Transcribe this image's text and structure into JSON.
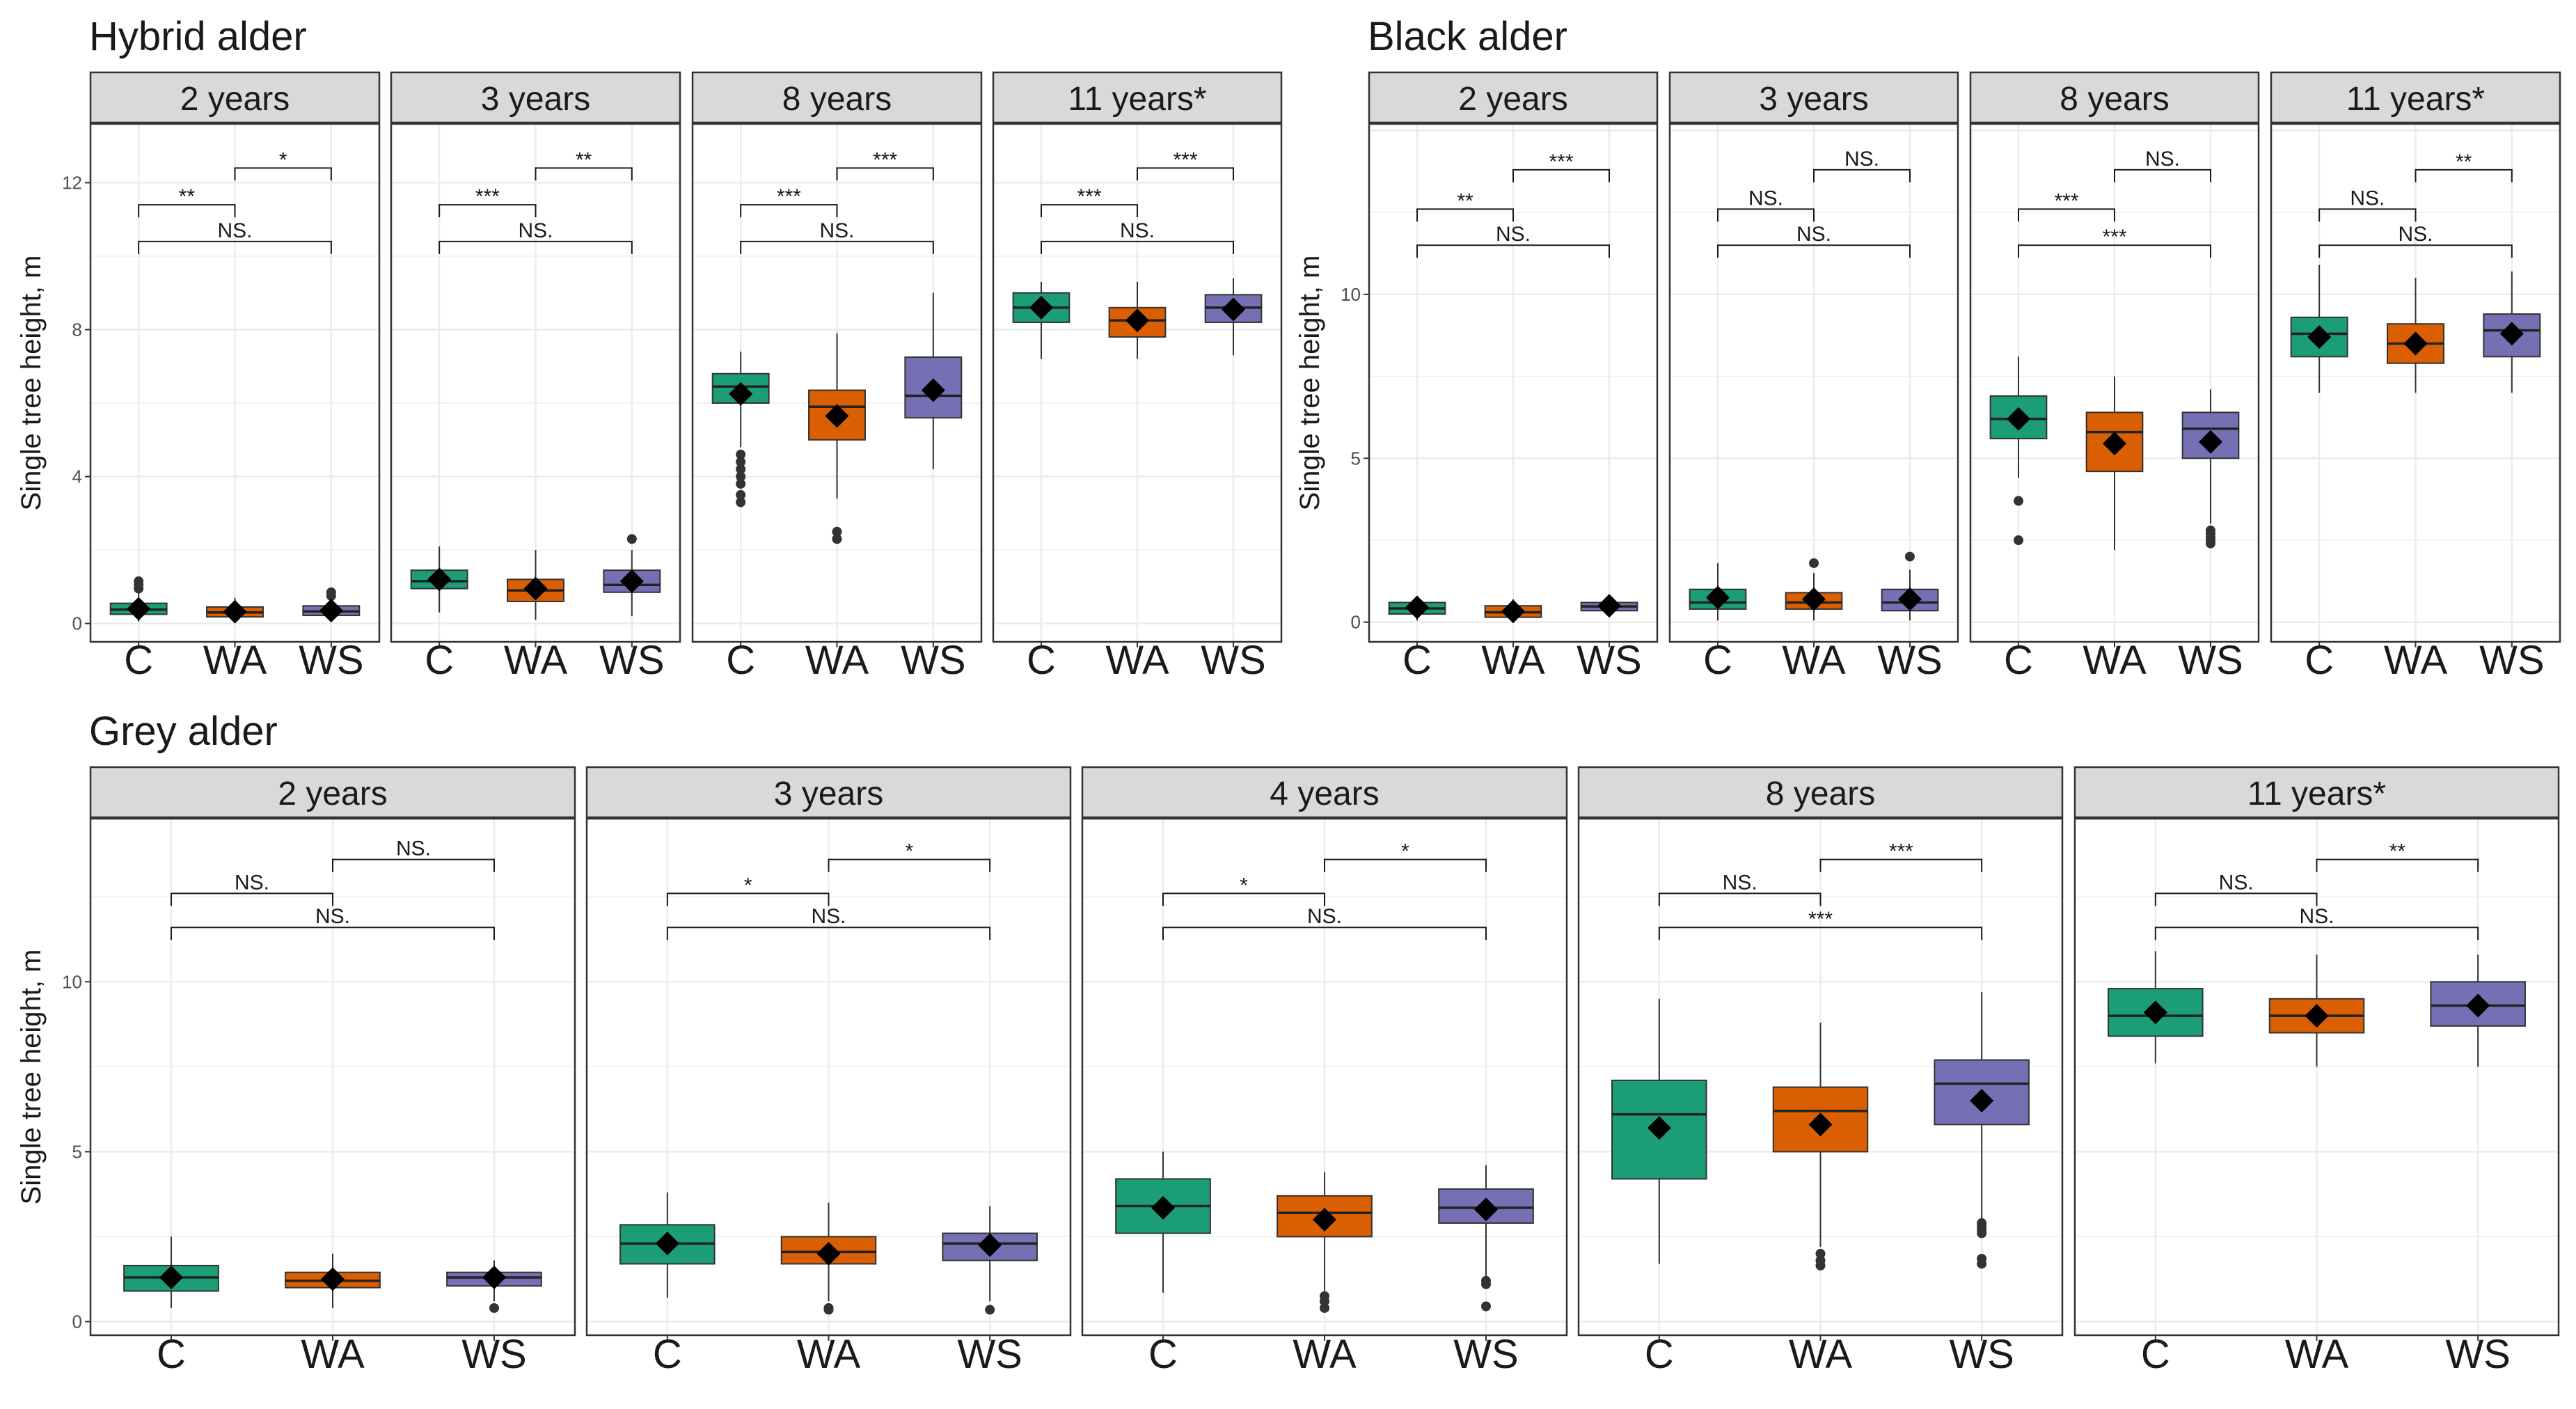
{
  "colors": {
    "C": "#1b9e77",
    "WA": "#d95f02",
    "WS": "#7570b3",
    "strip_bg": "#d9d9d9",
    "grid": "#ebebeb",
    "panel_border": "#333333",
    "text": "#1a1a1a",
    "axis_text": "#4d4d4d"
  },
  "chart_data": [
    {
      "type": "boxplot",
      "title": "Hybrid alder",
      "ylabel": "Single tree height, m",
      "ylim": [
        -0.5,
        13.6
      ],
      "yticks": [
        0,
        4,
        8,
        12
      ],
      "categories": [
        "C",
        "WA",
        "WS"
      ],
      "facets": [
        {
          "label": "2 years",
          "boxes": [
            {
              "cat": "C",
              "q1": 0.25,
              "median": 0.38,
              "q3": 0.55,
              "low": 0.05,
              "high": 0.85,
              "mean": 0.4,
              "outliers": [
                0.95,
                1.05,
                1.15
              ]
            },
            {
              "cat": "WA",
              "q1": 0.18,
              "median": 0.3,
              "q3": 0.45,
              "low": 0.05,
              "high": 0.7,
              "mean": 0.32,
              "outliers": []
            },
            {
              "cat": "WS",
              "q1": 0.22,
              "median": 0.33,
              "q3": 0.48,
              "low": 0.05,
              "high": 0.7,
              "mean": 0.35,
              "outliers": [
                0.75,
                0.85
              ]
            }
          ],
          "brackets": [
            {
              "from": 1,
              "to": 2,
              "y": 12.4,
              "label": "*"
            },
            {
              "from": 0,
              "to": 1,
              "y": 11.4,
              "label": "**"
            },
            {
              "from": 0,
              "to": 2,
              "y": 10.4,
              "label": "NS."
            }
          ]
        },
        {
          "label": "3 years",
          "boxes": [
            {
              "cat": "C",
              "q1": 0.95,
              "median": 1.15,
              "q3": 1.45,
              "low": 0.3,
              "high": 2.1,
              "mean": 1.2,
              "outliers": []
            },
            {
              "cat": "WA",
              "q1": 0.6,
              "median": 0.9,
              "q3": 1.2,
              "low": 0.1,
              "high": 2.0,
              "mean": 0.95,
              "outliers": []
            },
            {
              "cat": "WS",
              "q1": 0.85,
              "median": 1.05,
              "q3": 1.45,
              "low": 0.2,
              "high": 2.0,
              "mean": 1.15,
              "outliers": [
                2.3
              ]
            }
          ],
          "brackets": [
            {
              "from": 1,
              "to": 2,
              "y": 12.4,
              "label": "**"
            },
            {
              "from": 0,
              "to": 1,
              "y": 11.4,
              "label": "***"
            },
            {
              "from": 0,
              "to": 2,
              "y": 10.4,
              "label": "NS."
            }
          ]
        },
        {
          "label": "8 years",
          "boxes": [
            {
              "cat": "C",
              "q1": 6.0,
              "median": 6.45,
              "q3": 6.8,
              "low": 4.8,
              "high": 7.4,
              "mean": 6.25,
              "outliers": [
                4.6,
                4.4,
                4.2,
                4.0,
                3.8,
                3.5,
                3.3
              ]
            },
            {
              "cat": "WA",
              "q1": 5.0,
              "median": 5.9,
              "q3": 6.35,
              "low": 3.4,
              "high": 7.9,
              "mean": 5.65,
              "outliers": [
                2.5,
                2.3
              ]
            },
            {
              "cat": "WS",
              "q1": 5.6,
              "median": 6.2,
              "q3": 7.25,
              "low": 4.2,
              "high": 9.0,
              "mean": 6.35,
              "outliers": []
            }
          ],
          "brackets": [
            {
              "from": 1,
              "to": 2,
              "y": 12.4,
              "label": "***"
            },
            {
              "from": 0,
              "to": 1,
              "y": 11.4,
              "label": "***"
            },
            {
              "from": 0,
              "to": 2,
              "y": 10.4,
              "label": "NS."
            }
          ]
        },
        {
          "label": "11 years*",
          "boxes": [
            {
              "cat": "C",
              "q1": 8.2,
              "median": 8.6,
              "q3": 9.0,
              "low": 7.2,
              "high": 9.3,
              "mean": 8.6,
              "outliers": []
            },
            {
              "cat": "WA",
              "q1": 7.8,
              "median": 8.25,
              "q3": 8.6,
              "low": 7.2,
              "high": 9.3,
              "mean": 8.25,
              "outliers": []
            },
            {
              "cat": "WS",
              "q1": 8.2,
              "median": 8.6,
              "q3": 8.95,
              "low": 7.3,
              "high": 9.4,
              "mean": 8.55,
              "outliers": []
            }
          ],
          "brackets": [
            {
              "from": 1,
              "to": 2,
              "y": 12.4,
              "label": "***"
            },
            {
              "from": 0,
              "to": 1,
              "y": 11.4,
              "label": "***"
            },
            {
              "from": 0,
              "to": 2,
              "y": 10.4,
              "label": "NS."
            }
          ]
        }
      ]
    },
    {
      "type": "boxplot",
      "title": "Black alder",
      "ylabel": "Single tree height, m",
      "ylim": [
        -0.6,
        15.2
      ],
      "yticks": [
        0,
        5,
        10
      ],
      "categories": [
        "C",
        "WA",
        "WS"
      ],
      "facets": [
        {
          "label": "2 years",
          "boxes": [
            {
              "cat": "C",
              "q1": 0.25,
              "median": 0.42,
              "q3": 0.6,
              "low": 0.05,
              "high": 0.8,
              "mean": 0.45,
              "outliers": []
            },
            {
              "cat": "WA",
              "q1": 0.15,
              "median": 0.3,
              "q3": 0.5,
              "low": 0.05,
              "high": 0.7,
              "mean": 0.33,
              "outliers": []
            },
            {
              "cat": "WS",
              "q1": 0.35,
              "median": 0.48,
              "q3": 0.6,
              "low": 0.2,
              "high": 0.75,
              "mean": 0.5,
              "outliers": []
            }
          ],
          "brackets": [
            {
              "from": 1,
              "to": 2,
              "y": 13.8,
              "label": "***"
            },
            {
              "from": 0,
              "to": 1,
              "y": 12.6,
              "label": "**"
            },
            {
              "from": 0,
              "to": 2,
              "y": 11.5,
              "label": "NS."
            }
          ]
        },
        {
          "label": "3 years",
          "boxes": [
            {
              "cat": "C",
              "q1": 0.4,
              "median": 0.6,
              "q3": 1.0,
              "low": 0.05,
              "high": 1.8,
              "mean": 0.75,
              "outliers": []
            },
            {
              "cat": "WA",
              "q1": 0.4,
              "median": 0.6,
              "q3": 0.9,
              "low": 0.05,
              "high": 1.5,
              "mean": 0.7,
              "outliers": [
                1.8
              ]
            },
            {
              "cat": "WS",
              "q1": 0.35,
              "median": 0.6,
              "q3": 1.0,
              "low": 0.05,
              "high": 1.6,
              "mean": 0.7,
              "outliers": [
                2.0
              ]
            }
          ],
          "brackets": [
            {
              "from": 1,
              "to": 2,
              "y": 13.8,
              "label": "NS."
            },
            {
              "from": 0,
              "to": 1,
              "y": 12.6,
              "label": "NS."
            },
            {
              "from": 0,
              "to": 2,
              "y": 11.5,
              "label": "NS."
            }
          ]
        },
        {
          "label": "8 years",
          "boxes": [
            {
              "cat": "C",
              "q1": 5.6,
              "median": 6.2,
              "q3": 6.9,
              "low": 4.4,
              "high": 8.1,
              "mean": 6.2,
              "outliers": [
                3.7,
                2.5
              ]
            },
            {
              "cat": "WA",
              "q1": 4.6,
              "median": 5.8,
              "q3": 6.4,
              "low": 2.2,
              "high": 7.5,
              "mean": 5.45,
              "outliers": []
            },
            {
              "cat": "WS",
              "q1": 5.0,
              "median": 5.9,
              "q3": 6.4,
              "low": 3.0,
              "high": 7.1,
              "mean": 5.5,
              "outliers": [
                2.8,
                2.7,
                2.6,
                2.5,
                2.4
              ]
            }
          ],
          "brackets": [
            {
              "from": 1,
              "to": 2,
              "y": 13.8,
              "label": "NS."
            },
            {
              "from": 0,
              "to": 1,
              "y": 12.6,
              "label": "***"
            },
            {
              "from": 0,
              "to": 2,
              "y": 11.5,
              "label": "***"
            }
          ]
        },
        {
          "label": "11 years*",
          "boxes": [
            {
              "cat": "C",
              "q1": 8.1,
              "median": 8.8,
              "q3": 9.3,
              "low": 7.0,
              "high": 10.9,
              "mean": 8.7,
              "outliers": []
            },
            {
              "cat": "WA",
              "q1": 7.9,
              "median": 8.5,
              "q3": 9.1,
              "low": 7.0,
              "high": 10.5,
              "mean": 8.5,
              "outliers": []
            },
            {
              "cat": "WS",
              "q1": 8.1,
              "median": 8.9,
              "q3": 9.4,
              "low": 7.0,
              "high": 10.7,
              "mean": 8.8,
              "outliers": []
            }
          ],
          "brackets": [
            {
              "from": 1,
              "to": 2,
              "y": 13.8,
              "label": "**"
            },
            {
              "from": 0,
              "to": 1,
              "y": 12.6,
              "label": "NS."
            },
            {
              "from": 0,
              "to": 2,
              "y": 11.5,
              "label": "NS."
            }
          ]
        }
      ]
    },
    {
      "type": "boxplot",
      "title": "Grey alder",
      "ylabel": "Single tree height, m",
      "ylim": [
        -0.4,
        14.8
      ],
      "yticks": [
        0,
        5,
        10
      ],
      "categories": [
        "C",
        "WA",
        "WS"
      ],
      "facets": [
        {
          "label": "2 years",
          "boxes": [
            {
              "cat": "C",
              "q1": 0.9,
              "median": 1.3,
              "q3": 1.65,
              "low": 0.4,
              "high": 2.5,
              "mean": 1.3,
              "outliers": []
            },
            {
              "cat": "WA",
              "q1": 1.0,
              "median": 1.2,
              "q3": 1.45,
              "low": 0.4,
              "high": 2.0,
              "mean": 1.25,
              "outliers": []
            },
            {
              "cat": "WS",
              "q1": 1.05,
              "median": 1.3,
              "q3": 1.45,
              "low": 0.6,
              "high": 1.8,
              "mean": 1.3,
              "outliers": [
                0.4
              ]
            }
          ],
          "brackets": [
            {
              "from": 1,
              "to": 2,
              "y": 13.6,
              "label": "NS."
            },
            {
              "from": 0,
              "to": 1,
              "y": 12.6,
              "label": "NS."
            },
            {
              "from": 0,
              "to": 2,
              "y": 11.6,
              "label": "NS."
            }
          ]
        },
        {
          "label": "3 years",
          "boxes": [
            {
              "cat": "C",
              "q1": 1.7,
              "median": 2.3,
              "q3": 2.85,
              "low": 0.7,
              "high": 3.8,
              "mean": 2.3,
              "outliers": []
            },
            {
              "cat": "WA",
              "q1": 1.7,
              "median": 2.05,
              "q3": 2.5,
              "low": 0.6,
              "high": 3.5,
              "mean": 2.0,
              "outliers": [
                0.4,
                0.35
              ]
            },
            {
              "cat": "WS",
              "q1": 1.8,
              "median": 2.3,
              "q3": 2.6,
              "low": 0.6,
              "high": 3.4,
              "mean": 2.25,
              "outliers": [
                0.35
              ]
            }
          ],
          "brackets": [
            {
              "from": 1,
              "to": 2,
              "y": 13.6,
              "label": "*"
            },
            {
              "from": 0,
              "to": 1,
              "y": 12.6,
              "label": "*"
            },
            {
              "from": 0,
              "to": 2,
              "y": 11.6,
              "label": "NS."
            }
          ]
        },
        {
          "label": "4 years",
          "boxes": [
            {
              "cat": "C",
              "q1": 2.6,
              "median": 3.4,
              "q3": 4.2,
              "low": 0.85,
              "high": 5.0,
              "mean": 3.35,
              "outliers": []
            },
            {
              "cat": "WA",
              "q1": 2.5,
              "median": 3.2,
              "q3": 3.7,
              "low": 0.9,
              "high": 4.4,
              "mean": 3.0,
              "outliers": [
                0.75,
                0.6,
                0.4
              ]
            },
            {
              "cat": "WS",
              "q1": 2.9,
              "median": 3.35,
              "q3": 3.9,
              "low": 1.3,
              "high": 4.6,
              "mean": 3.3,
              "outliers": [
                1.2,
                1.1,
                0.45
              ]
            }
          ],
          "brackets": [
            {
              "from": 1,
              "to": 2,
              "y": 13.6,
              "label": "*"
            },
            {
              "from": 0,
              "to": 1,
              "y": 12.6,
              "label": "*"
            },
            {
              "from": 0,
              "to": 2,
              "y": 11.6,
              "label": "NS."
            }
          ]
        },
        {
          "label": "8 years",
          "boxes": [
            {
              "cat": "C",
              "q1": 4.2,
              "median": 6.1,
              "q3": 7.1,
              "low": 1.7,
              "high": 9.5,
              "mean": 5.7,
              "outliers": []
            },
            {
              "cat": "WA",
              "q1": 5.0,
              "median": 6.2,
              "q3": 6.9,
              "low": 2.2,
              "high": 8.8,
              "mean": 5.8,
              "outliers": [
                2.0,
                1.8,
                1.65
              ]
            },
            {
              "cat": "WS",
              "q1": 5.8,
              "median": 7.0,
              "q3": 7.7,
              "low": 3.0,
              "high": 9.7,
              "mean": 6.5,
              "outliers": [
                2.9,
                2.8,
                2.7,
                2.6,
                1.85,
                1.7
              ]
            }
          ],
          "brackets": [
            {
              "from": 1,
              "to": 2,
              "y": 13.6,
              "label": "***"
            },
            {
              "from": 0,
              "to": 1,
              "y": 12.6,
              "label": "NS."
            },
            {
              "from": 0,
              "to": 2,
              "y": 11.6,
              "label": "***"
            }
          ]
        },
        {
          "label": "11 years*",
          "boxes": [
            {
              "cat": "C",
              "q1": 8.4,
              "median": 9.0,
              "q3": 9.8,
              "low": 7.6,
              "high": 10.9,
              "mean": 9.1,
              "outliers": []
            },
            {
              "cat": "WA",
              "q1": 8.5,
              "median": 9.0,
              "q3": 9.5,
              "low": 7.5,
              "high": 10.8,
              "mean": 9.0,
              "outliers": []
            },
            {
              "cat": "WS",
              "q1": 8.7,
              "median": 9.3,
              "q3": 10.0,
              "low": 7.5,
              "high": 10.8,
              "mean": 9.3,
              "outliers": []
            }
          ],
          "brackets": [
            {
              "from": 1,
              "to": 2,
              "y": 13.6,
              "label": "**"
            },
            {
              "from": 0,
              "to": 1,
              "y": 12.6,
              "label": "NS."
            },
            {
              "from": 0,
              "to": 2,
              "y": 11.6,
              "label": "NS."
            }
          ]
        }
      ]
    }
  ]
}
